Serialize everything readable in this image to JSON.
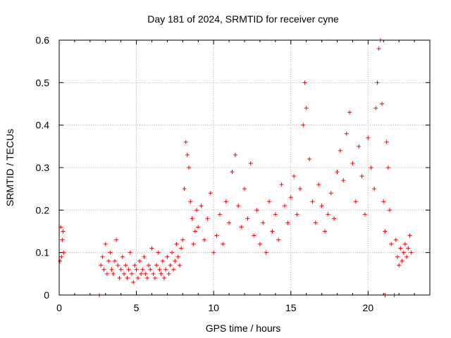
{
  "chart_data": {
    "type": "scatter",
    "title": "Day 181 of 2024, SRMTID for receiver cyne",
    "xlabel": "GPS time / hours",
    "ylabel": "SRMTID / TECUs",
    "xlim": [
      0,
      24
    ],
    "ylim": [
      0,
      0.6
    ],
    "x_ticks": [
      0,
      5,
      10,
      15,
      20
    ],
    "x_tick_labels": [
      "0",
      "5",
      "10",
      "15",
      "20"
    ],
    "y_ticks": [
      0,
      0.1,
      0.2,
      0.3,
      0.4,
      0.5,
      0.6
    ],
    "y_tick_labels": [
      "0",
      "0.1",
      "0.2",
      "0.3",
      "0.4",
      "0.5",
      "0.6"
    ],
    "grid": true,
    "marker": "+",
    "series_color": "#ff0000",
    "series": [
      {
        "name": "SRMTID",
        "x": [
          0.05,
          0.1,
          0.15,
          0.2,
          0.25,
          0.3,
          2.7,
          2.8,
          2.9,
          3.0,
          3.1,
          3.2,
          3.3,
          3.4,
          3.5,
          3.6,
          3.7,
          3.8,
          3.9,
          4.0,
          4.1,
          4.2,
          4.3,
          4.4,
          4.5,
          4.6,
          4.7,
          4.8,
          4.9,
          5.0,
          5.1,
          5.2,
          5.3,
          5.4,
          5.5,
          5.6,
          5.7,
          5.8,
          5.9,
          6.0,
          6.1,
          6.2,
          6.3,
          6.4,
          6.5,
          6.6,
          6.7,
          6.8,
          6.9,
          7.0,
          7.1,
          7.2,
          7.3,
          7.4,
          7.5,
          7.6,
          7.7,
          7.8,
          7.9,
          8.0,
          8.1,
          8.2,
          8.3,
          8.4,
          8.5,
          8.6,
          8.7,
          8.8,
          8.9,
          9.0,
          9.2,
          9.4,
          9.6,
          9.8,
          10.0,
          10.2,
          10.4,
          10.6,
          10.8,
          11.0,
          11.2,
          11.4,
          11.6,
          11.8,
          12.0,
          12.2,
          12.4,
          12.6,
          12.8,
          13.0,
          13.2,
          13.4,
          13.6,
          13.8,
          14.0,
          14.2,
          14.4,
          14.6,
          14.8,
          15.0,
          15.2,
          15.4,
          15.6,
          15.8,
          15.9,
          16.0,
          16.2,
          16.4,
          16.6,
          16.8,
          17.0,
          17.2,
          17.4,
          17.6,
          17.8,
          18.0,
          18.2,
          18.4,
          18.6,
          18.8,
          19.0,
          19.2,
          19.4,
          19.6,
          19.8,
          20.0,
          20.2,
          20.4,
          20.5,
          20.6,
          20.7,
          20.8,
          20.9,
          21.0,
          21.1,
          21.2,
          21.3,
          21.4,
          21.5,
          21.8,
          21.9,
          22.0,
          22.1,
          22.2,
          22.3,
          22.4,
          22.5,
          22.6,
          22.7,
          22.8,
          2.6,
          21.1,
          21.7
        ],
        "y": [
          0.08,
          0.16,
          0.09,
          0.13,
          0.15,
          0.1,
          0.07,
          0.09,
          0.06,
          0.12,
          0.05,
          0.08,
          0.1,
          0.06,
          0.05,
          0.08,
          0.13,
          0.07,
          0.04,
          0.06,
          0.09,
          0.05,
          0.07,
          0.04,
          0.06,
          0.1,
          0.05,
          0.03,
          0.07,
          0.06,
          0.04,
          0.08,
          0.05,
          0.06,
          0.09,
          0.05,
          0.04,
          0.07,
          0.06,
          0.11,
          0.05,
          0.04,
          0.07,
          0.1,
          0.06,
          0.05,
          0.08,
          0.04,
          0.06,
          0.09,
          0.05,
          0.07,
          0.1,
          0.06,
          0.08,
          0.12,
          0.09,
          0.07,
          0.11,
          0.13,
          0.25,
          0.36,
          0.33,
          0.3,
          0.22,
          0.18,
          0.12,
          0.15,
          0.2,
          0.16,
          0.21,
          0.13,
          0.18,
          0.24,
          0.1,
          0.14,
          0.19,
          0.12,
          0.22,
          0.17,
          0.29,
          0.33,
          0.21,
          0.16,
          0.25,
          0.18,
          0.31,
          0.14,
          0.2,
          0.12,
          0.17,
          0.1,
          0.22,
          0.15,
          0.19,
          0.13,
          0.26,
          0.21,
          0.17,
          0.23,
          0.28,
          0.19,
          0.25,
          0.4,
          0.5,
          0.44,
          0.32,
          0.22,
          0.17,
          0.26,
          0.21,
          0.15,
          0.19,
          0.24,
          0.18,
          0.29,
          0.34,
          0.27,
          0.38,
          0.43,
          0.31,
          0.22,
          0.35,
          0.28,
          0.19,
          0.37,
          0.3,
          0.25,
          0.44,
          0.5,
          0.58,
          0.6,
          0.45,
          0.22,
          0.15,
          0.36,
          0.3,
          0.2,
          0.12,
          0.13,
          0.09,
          0.07,
          0.11,
          0.08,
          0.1,
          0.12,
          0.09,
          0.11,
          0.14,
          0.1,
          0.0,
          0.0,
          0.0
        ]
      }
    ]
  }
}
